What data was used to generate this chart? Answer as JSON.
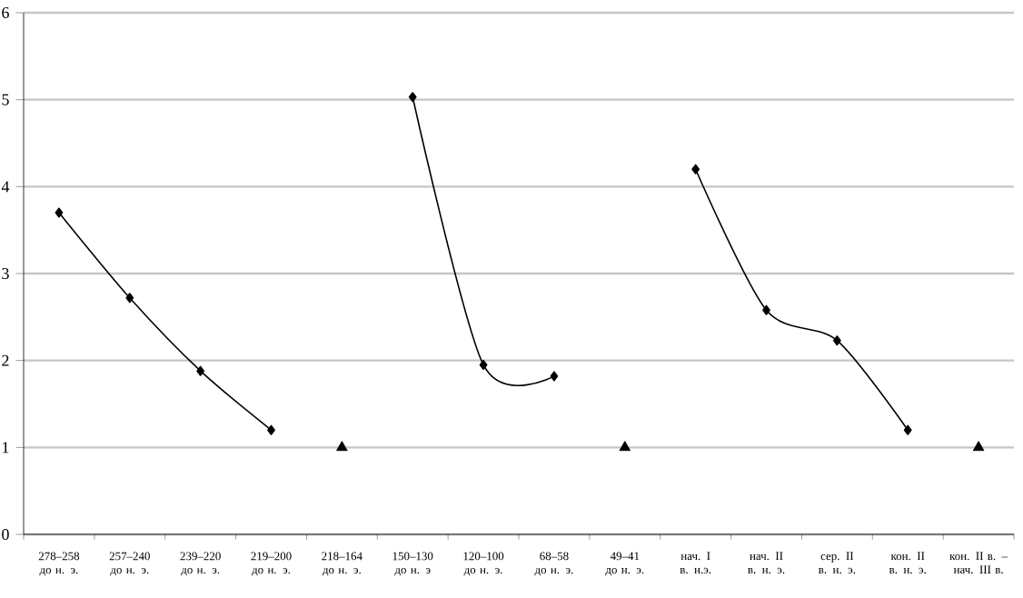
{
  "chart_data": {
    "type": "line",
    "categories": [
      "278–258 до н. э.",
      "257–240 до н. э.",
      "239–220 до н. э.",
      "219–200 до н. э.",
      "218–164 до н. э.",
      "150–130 до н. э",
      "120–100 до н. э.",
      "68–58 до н. э.",
      "49–41 до н. э.",
      "нач. I в. н.э.",
      "нач. II в. н. э.",
      "сер. II в. н. э.",
      "кон. II в. н. э.",
      "кон. II в. – нач. III в."
    ],
    "series": [
      {
        "color": "#000000",
        "marker": "diamond",
        "values": [
          3.7,
          2.72,
          1.88,
          1.2,
          null,
          5.03,
          1.95,
          1.82,
          null,
          4.2,
          2.58,
          2.23,
          1.2,
          null
        ]
      },
      {
        "type": "scatter",
        "color": "#000000",
        "marker": "triangle",
        "values": [
          null,
          null,
          null,
          null,
          1,
          null,
          null,
          null,
          1,
          null,
          null,
          null,
          null,
          1
        ]
      }
    ],
    "ylim": [
      0,
      6
    ],
    "yticks": [
      0,
      1,
      2,
      3,
      4,
      5,
      6
    ],
    "grid": "y"
  }
}
